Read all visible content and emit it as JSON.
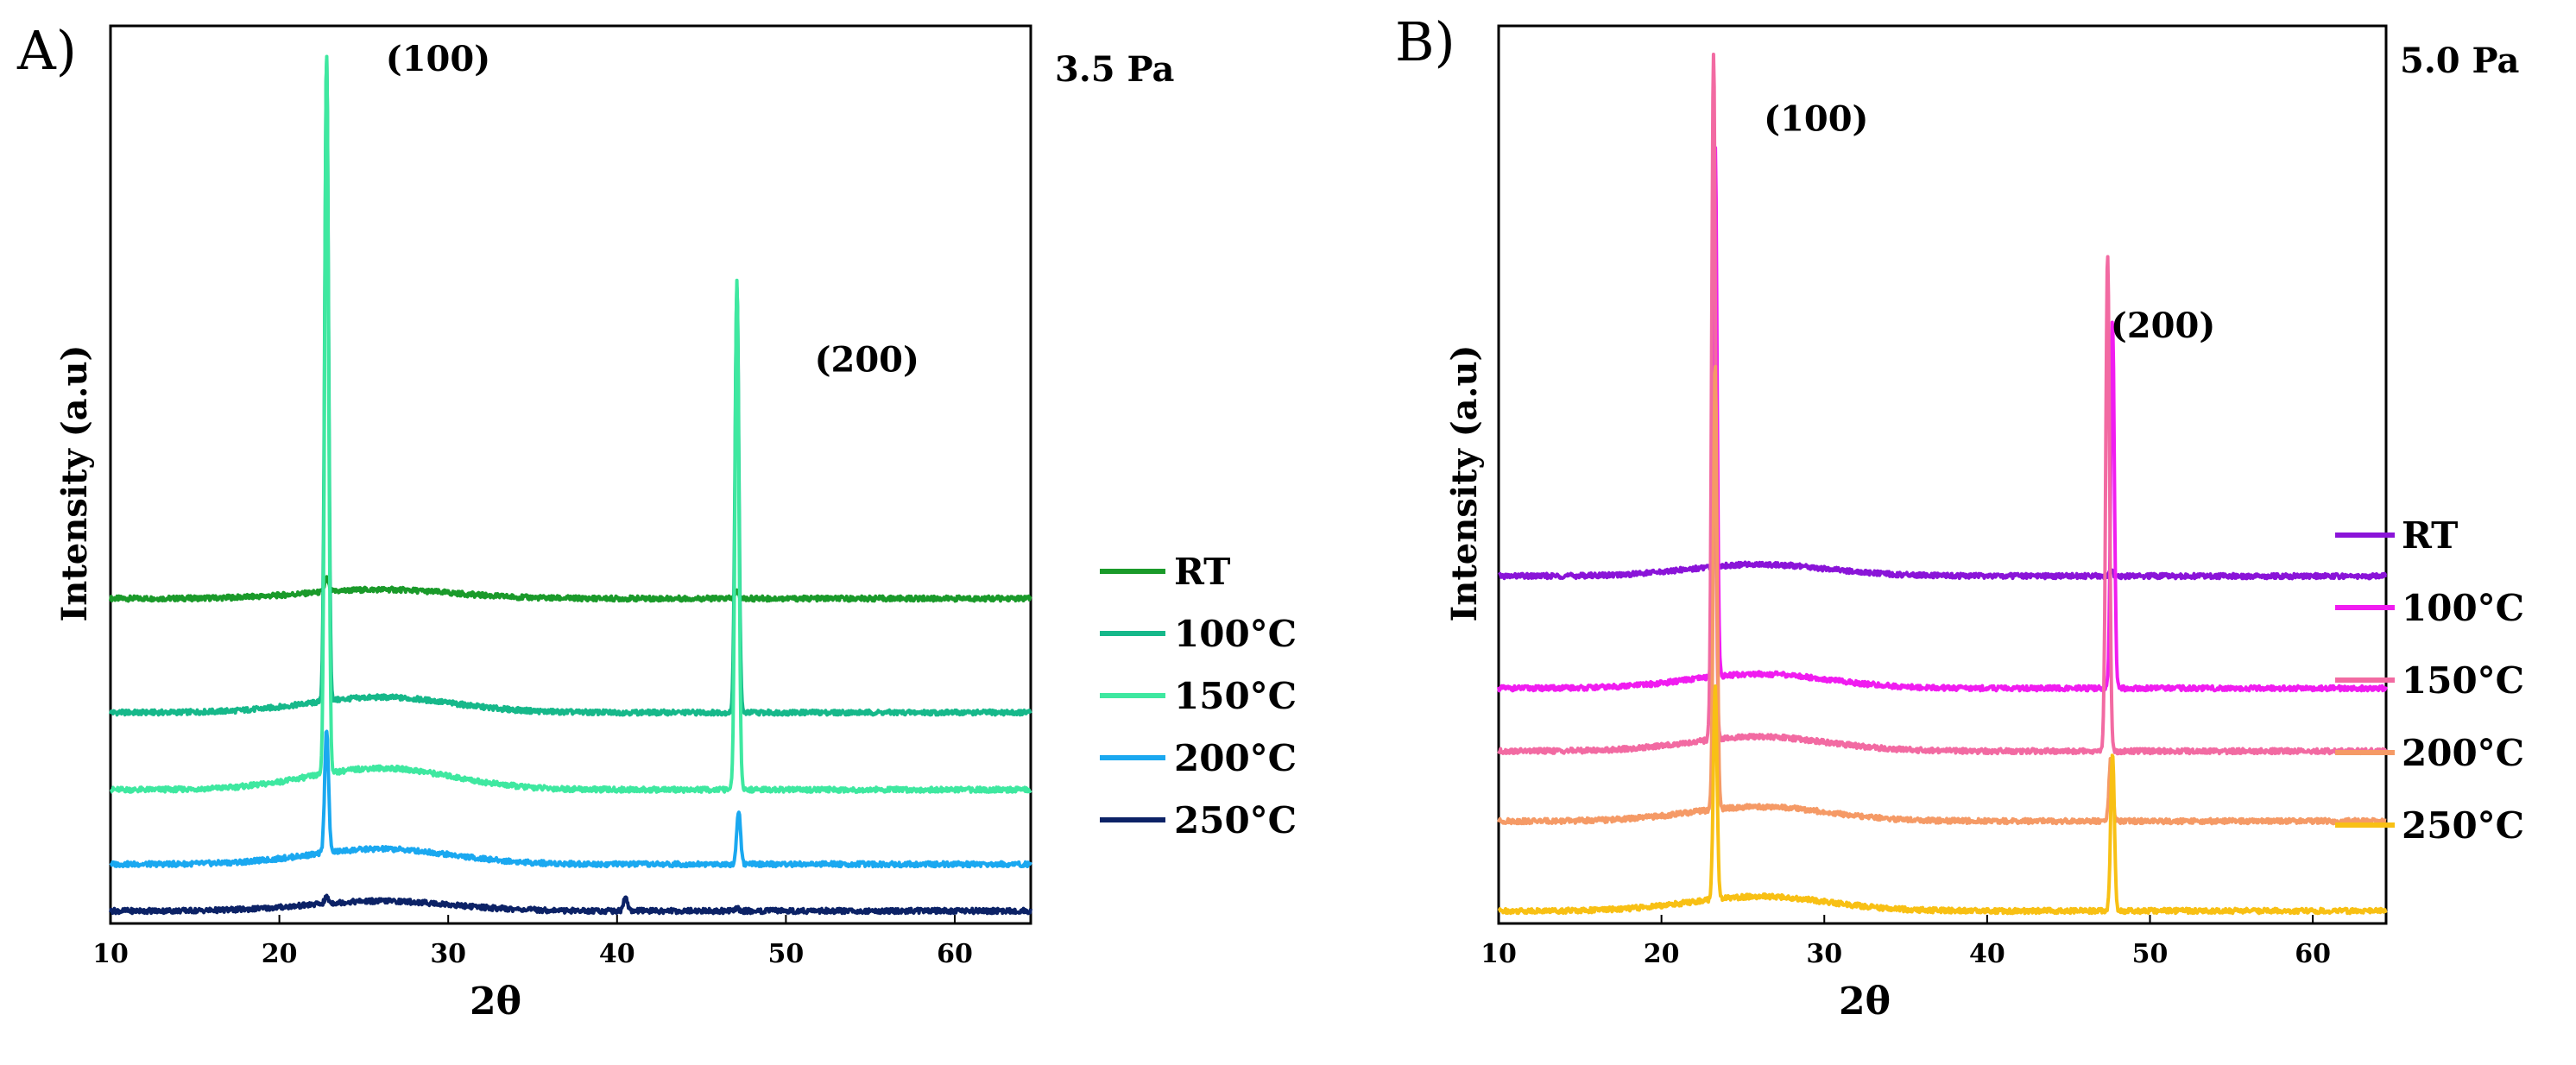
{
  "chart_data": [
    {
      "panel_label": "A)",
      "type": "line",
      "pressure_label": "3.5 Pa",
      "xlabel": "2θ",
      "ylabel": "Intensity (a.u)",
      "xlim": [
        10,
        64.5
      ],
      "ylim": [
        0,
        100
      ],
      "xticks": [
        "10",
        "20",
        "30",
        "40",
        "50",
        "60"
      ],
      "peak_labels": [
        {
          "text": "(100)",
          "x": 29.4,
          "y": 95
        },
        {
          "text": "(200)",
          "x": 54.8,
          "y": 61.5
        }
      ],
      "series": [
        {
          "name": "RT",
          "color": "#1a9a2a",
          "baseline": 36.2,
          "hump": 1.0,
          "peaks": [
            {
              "x": 22.8,
              "h": 1.5
            },
            {
              "x": 47.1,
              "h": 0.8
            }
          ]
        },
        {
          "name": "100°C",
          "color": "#16b88a",
          "baseline": 23.5,
          "hump": 1.7,
          "peaks": [
            {
              "x": 22.8,
              "h": 71.5
            },
            {
              "x": 47.1,
              "h": 47.5
            }
          ]
        },
        {
          "name": "150°C",
          "color": "#3ee8a0",
          "baseline": 14.9,
          "hump": 2.4,
          "peaks": [
            {
              "x": 22.8,
              "h": 80.3
            },
            {
              "x": 47.1,
              "h": 56.5
            }
          ]
        },
        {
          "name": "200°C",
          "color": "#1aa8f0",
          "baseline": 6.6,
          "hump": 1.7,
          "peaks": [
            {
              "x": 22.8,
              "h": 13.8
            },
            {
              "x": 47.2,
              "h": 6.0
            }
          ]
        },
        {
          "name": "250°C",
          "color": "#0c2266",
          "baseline": 1.4,
          "hump": 1.1,
          "peaks": [
            {
              "x": 22.8,
              "h": 0.7
            },
            {
              "x": 40.5,
              "h": 1.6
            },
            {
              "x": 47.1,
              "h": 0.3
            }
          ]
        }
      ]
    },
    {
      "panel_label": "B)",
      "type": "line",
      "pressure_label": "5.0 Pa",
      "xlabel": "2θ",
      "ylabel": "Intensity (a.u)",
      "xlim": [
        10,
        64.5
      ],
      "ylim": [
        0,
        100
      ],
      "xticks": [
        "10",
        "20",
        "30",
        "40",
        "50",
        "60"
      ],
      "peak_labels": [
        {
          "text": "(100)",
          "x": 29.5,
          "y": 88.3
        },
        {
          "text": "(200)",
          "x": 50.8,
          "y": 65.3
        }
      ],
      "series": [
        {
          "name": "RT",
          "color": "#8a14d8",
          "baseline": 38.7,
          "hump": 1.3,
          "peaks": [
            {
              "x": 23.3,
              "h": 0.8
            },
            {
              "x": 47.6,
              "h": 0.6
            }
          ]
        },
        {
          "name": "100°C",
          "color": "#f01cf0",
          "baseline": 26.2,
          "hump": 1.6,
          "peaks": [
            {
              "x": 23.3,
              "h": 59.2
            },
            {
              "x": 47.7,
              "h": 41.0
            }
          ]
        },
        {
          "name": "150°C",
          "color": "#f26aa2",
          "baseline": 19.2,
          "hump": 1.6,
          "peaks": [
            {
              "x": 23.2,
              "h": 76.6
            },
            {
              "x": 47.4,
              "h": 55.5
            }
          ]
        },
        {
          "name": "200°C",
          "color": "#f59a66",
          "baseline": 11.4,
          "hump": 1.6,
          "peaks": [
            {
              "x": 23.3,
              "h": 49.5
            },
            {
              "x": 47.6,
              "h": 7.2
            }
          ]
        },
        {
          "name": "250°C",
          "color": "#f8c014",
          "baseline": 1.4,
          "hump": 1.6,
          "peaks": [
            {
              "x": 23.3,
              "h": 24.0
            },
            {
              "x": 47.7,
              "h": 17.6
            }
          ]
        }
      ]
    }
  ]
}
